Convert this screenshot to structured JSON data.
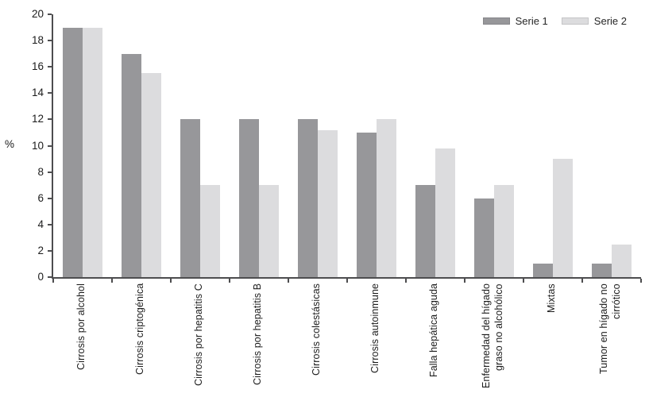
{
  "chart_data": {
    "type": "bar",
    "title": "",
    "xlabel": "",
    "ylabel": "%",
    "ylim": [
      0,
      20
    ],
    "yticks": [
      0,
      2,
      4,
      6,
      8,
      10,
      12,
      14,
      16,
      18,
      20
    ],
    "grid": false,
    "legend_position": "top-right",
    "categories": [
      "Cirrosis por alcohol",
      "Cirrosis criptogénica",
      "Cirrosis por hepatitis C",
      "Cirrosis por hepatitis B",
      "Cirrosis colestásicas",
      "Cirrosis autoinmune",
      "Falla hepática aguda",
      "Enfermedad del hígado\ngraso no alcohólico",
      "Mixtas",
      "Tumor en hígado no\ncirrótico"
    ],
    "series": [
      {
        "name": "Serie 1",
        "color": "#97979a",
        "values": [
          19,
          17,
          12,
          12,
          12,
          11,
          7,
          6,
          1,
          1
        ]
      },
      {
        "name": "Serie 2",
        "color": "#dcdcde",
        "values": [
          19,
          15.5,
          7,
          7,
          11.2,
          12,
          9.8,
          7,
          9,
          2.5
        ]
      }
    ]
  },
  "colors": {
    "axis": "#4d4d4f",
    "text": "#1c1c1c",
    "background": "#ffffff"
  }
}
